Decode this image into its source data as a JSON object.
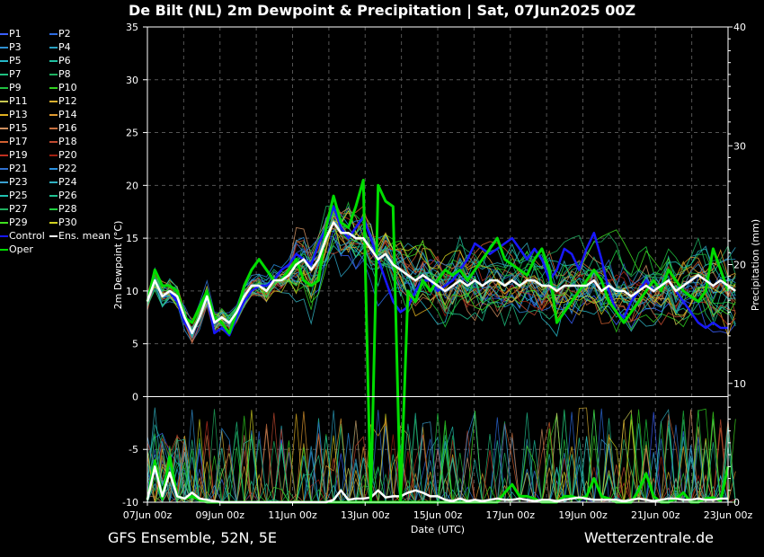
{
  "title": "De Bilt  (NL)  2m Dewpoint & Precipitation | Sat, 07Jun2025 00Z",
  "footer": {
    "left": "GFS Ensemble, 52N, 5E",
    "right": "Wetterzentrale.de"
  },
  "legend": [
    {
      "label": "P1",
      "color": "#3a5fff"
    },
    {
      "label": "P2",
      "color": "#2d6be0"
    },
    {
      "label": "P3",
      "color": "#2f8fd0"
    },
    {
      "label": "P4",
      "color": "#2aa0c0"
    },
    {
      "label": "P5",
      "color": "#25b8c8"
    },
    {
      "label": "P6",
      "color": "#20c0a0"
    },
    {
      "label": "P7",
      "color": "#1fc080"
    },
    {
      "label": "P8",
      "color": "#1db060"
    },
    {
      "label": "P9",
      "color": "#20c040"
    },
    {
      "label": "P10",
      "color": "#30d020"
    },
    {
      "label": "P11",
      "color": "#c8c850"
    },
    {
      "label": "P12",
      "color": "#d8b030"
    },
    {
      "label": "P13",
      "color": "#e0b020"
    },
    {
      "label": "P14",
      "color": "#e09a30"
    },
    {
      "label": "P15",
      "color": "#d09060"
    },
    {
      "label": "P16",
      "color": "#c87040"
    },
    {
      "label": "P17",
      "color": "#d06030"
    },
    {
      "label": "P18",
      "color": "#c04a30"
    },
    {
      "label": "P19",
      "color": "#c03020"
    },
    {
      "label": "P20",
      "color": "#a02010"
    },
    {
      "label": "P21",
      "color": "#3070d0"
    },
    {
      "label": "P22",
      "color": "#2a90e0"
    },
    {
      "label": "P23",
      "color": "#3aa0d0"
    },
    {
      "label": "P24",
      "color": "#30b0c0"
    },
    {
      "label": "P25",
      "color": "#20c0b0"
    },
    {
      "label": "P26",
      "color": "#20c090"
    },
    {
      "label": "P27",
      "color": "#20b060"
    },
    {
      "label": "P28",
      "color": "#20d040"
    },
    {
      "label": "P29",
      "color": "#40e020"
    },
    {
      "label": "P30",
      "color": "#d0d020"
    },
    {
      "label": "Control",
      "color": "#1818ff"
    },
    {
      "label": "Ens. mean",
      "color": "#ffffff"
    },
    {
      "label": "Oper",
      "color": "#00dd00"
    }
  ],
  "chart_data": {
    "type": "line",
    "xlabel": "Date (UTC)",
    "ylabel": "2m Dewpoint (°C)",
    "ylabel_right": "Precipitation (mm)",
    "ylim": [
      -10,
      35
    ],
    "ylim_right": [
      0,
      40
    ],
    "yticks_left": [
      35,
      30,
      25,
      20,
      15,
      10,
      5,
      0,
      -5,
      -10
    ],
    "yticks_right": [
      40,
      30,
      20,
      10,
      0
    ],
    "xticks": [
      "07Jun 00z",
      "09Jun 00z",
      "11Jun 00z",
      "13Jun 00z",
      "15Jun 00z",
      "17Jun 00z",
      "19Jun 00z",
      "21Jun 00z",
      "23Jun 00z"
    ],
    "x_step_hours": 6,
    "grid": true,
    "series": [
      {
        "name": "Control",
        "color": "#1818ff",
        "values": [
          9,
          11,
          9.5,
          10,
          9,
          7,
          6,
          7.5,
          9.5,
          6,
          6.5,
          5.8,
          7.5,
          9,
          10,
          10.5,
          10.5,
          11,
          12,
          12.5,
          13.5,
          13,
          12.5,
          14.5,
          16,
          18,
          16,
          15,
          16,
          17,
          15,
          13,
          11,
          9,
          8,
          8.5,
          10,
          11,
          11,
          10,
          10.5,
          11,
          12,
          13,
          14.5,
          14,
          13.5,
          14,
          14.5,
          15,
          14,
          13,
          14,
          13,
          11,
          12,
          14,
          13.5,
          12,
          14,
          15.5,
          13,
          10,
          8,
          7.5,
          9,
          10,
          11,
          10,
          10.5,
          11,
          10,
          9,
          8,
          7,
          6.5,
          7,
          6.5,
          6.5
        ]
      },
      {
        "name": "Ens. mean",
        "color": "#ffffff",
        "values": [
          9,
          11,
          9.5,
          10,
          9.5,
          7.5,
          6,
          7.5,
          9.5,
          7,
          7.5,
          7,
          8,
          9.5,
          10.5,
          10.5,
          10,
          11,
          11,
          11.5,
          12.5,
          13,
          12,
          13,
          15,
          16.5,
          15.5,
          15.5,
          15,
          15,
          14,
          13,
          13.5,
          12.5,
          12,
          11.5,
          11,
          11.5,
          11,
          10.5,
          10,
          10.5,
          11,
          10.5,
          11,
          10.5,
          11,
          11,
          10.5,
          11,
          10.5,
          11,
          11,
          10.5,
          10.5,
          10,
          10.5,
          10.5,
          10.5,
          10.5,
          11,
          10,
          10.5,
          10,
          10,
          9.5,
          10,
          10.5,
          10,
          10.5,
          11,
          10,
          10.5,
          11,
          11.5,
          11,
          10.5,
          11,
          10.5,
          10
        ]
      },
      {
        "name": "Oper",
        "color": "#00dd00",
        "values": [
          9,
          12,
          10.5,
          10.5,
          10,
          7.5,
          7,
          8.5,
          10,
          7.5,
          7,
          6,
          8,
          10.5,
          12,
          13,
          12,
          11,
          11,
          12,
          13,
          11,
          10.5,
          11,
          16,
          19,
          16.5,
          16,
          18,
          20.5,
          -10,
          20,
          18.5,
          18,
          -10,
          10,
          9,
          11,
          10,
          11,
          12,
          11.5,
          12,
          11,
          12,
          13,
          14,
          15,
          13,
          12.5,
          12,
          11.5,
          13,
          14,
          12,
          7,
          8,
          9,
          10,
          11,
          12,
          11,
          9,
          8,
          7,
          8,
          9,
          10,
          11,
          10,
          12,
          11,
          10,
          9.5,
          9,
          10,
          14,
          12,
          10
        ]
      },
      {
        "name": "Ens. mean precip",
        "color": "#ffffff",
        "axis": "right",
        "values": [
          0.2,
          3,
          0.5,
          2.5,
          0.5,
          0.3,
          0.8,
          0.3,
          0.2,
          0.1,
          0,
          0,
          0,
          0,
          0,
          0,
          0,
          0,
          0,
          0,
          0,
          0,
          0,
          0,
          0,
          0.2,
          1,
          0.2,
          0.3,
          0.3,
          0.4,
          1,
          0.4,
          0.5,
          0.5,
          0.8,
          1,
          0.8,
          0.5,
          0.5,
          0.2,
          0.1,
          0.3,
          0.1,
          0.2,
          0.1,
          0.2,
          0.3,
          0.2,
          0.2,
          0.3,
          0.2,
          0.1,
          0.2,
          0.2,
          0.1,
          0.2,
          0.3,
          0.4,
          0.3,
          0.2,
          0.2,
          0.2,
          0.2,
          0.1,
          0.2,
          0.3,
          0.2,
          0.1,
          0.2,
          0.3,
          0.3,
          0.2,
          0.2,
          0.3,
          0.2,
          0.2,
          0.3,
          0.3
        ]
      },
      {
        "name": "Oper precip",
        "color": "#00dd00",
        "axis": "right",
        "values": [
          0.2,
          3.5,
          0.3,
          3.8,
          0.5,
          0.3,
          0.5,
          0.2,
          0,
          0,
          0,
          0,
          0,
          0,
          0,
          0,
          0,
          0,
          0,
          0,
          0,
          0,
          0,
          0,
          0,
          0,
          0,
          0,
          0,
          0,
          0,
          0,
          0,
          0,
          0,
          0,
          0,
          0,
          0,
          0,
          0,
          0,
          0,
          0,
          0,
          0,
          0,
          0,
          0.8,
          1.5,
          0.5,
          0.5,
          0.3,
          0,
          0,
          0,
          0.5,
          0.5,
          0.3,
          0.5,
          2,
          0.5,
          0.3,
          0,
          0,
          0,
          1,
          2.4,
          0.5,
          0,
          0,
          0.3,
          0.8,
          0,
          0,
          0.3,
          0.4,
          0.1,
          3
        ]
      }
    ]
  }
}
